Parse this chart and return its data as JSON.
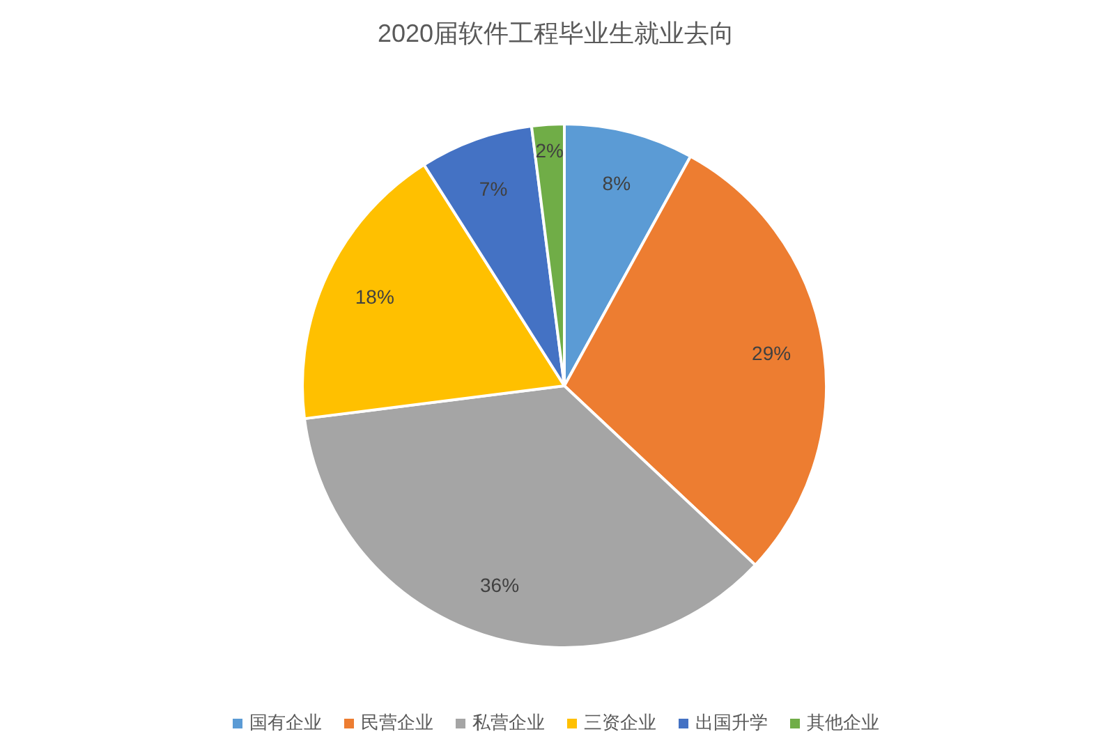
{
  "chart_data": {
    "type": "pie",
    "title": "2020届软件工程毕业生就业去向",
    "categories": [
      "国有企业",
      "民营企业",
      "私营企业",
      "三资企业",
      "出国升学",
      "其他企业"
    ],
    "values": [
      8,
      29,
      36,
      18,
      7,
      2
    ],
    "value_labels": [
      "8%",
      "29%",
      "36%",
      "18%",
      "7%",
      "2%"
    ],
    "colors": [
      "#5b9bd5",
      "#ed7d31",
      "#a5a5a5",
      "#ffc000",
      "#4472c4",
      "#70ad47"
    ],
    "legend": "bottom"
  }
}
